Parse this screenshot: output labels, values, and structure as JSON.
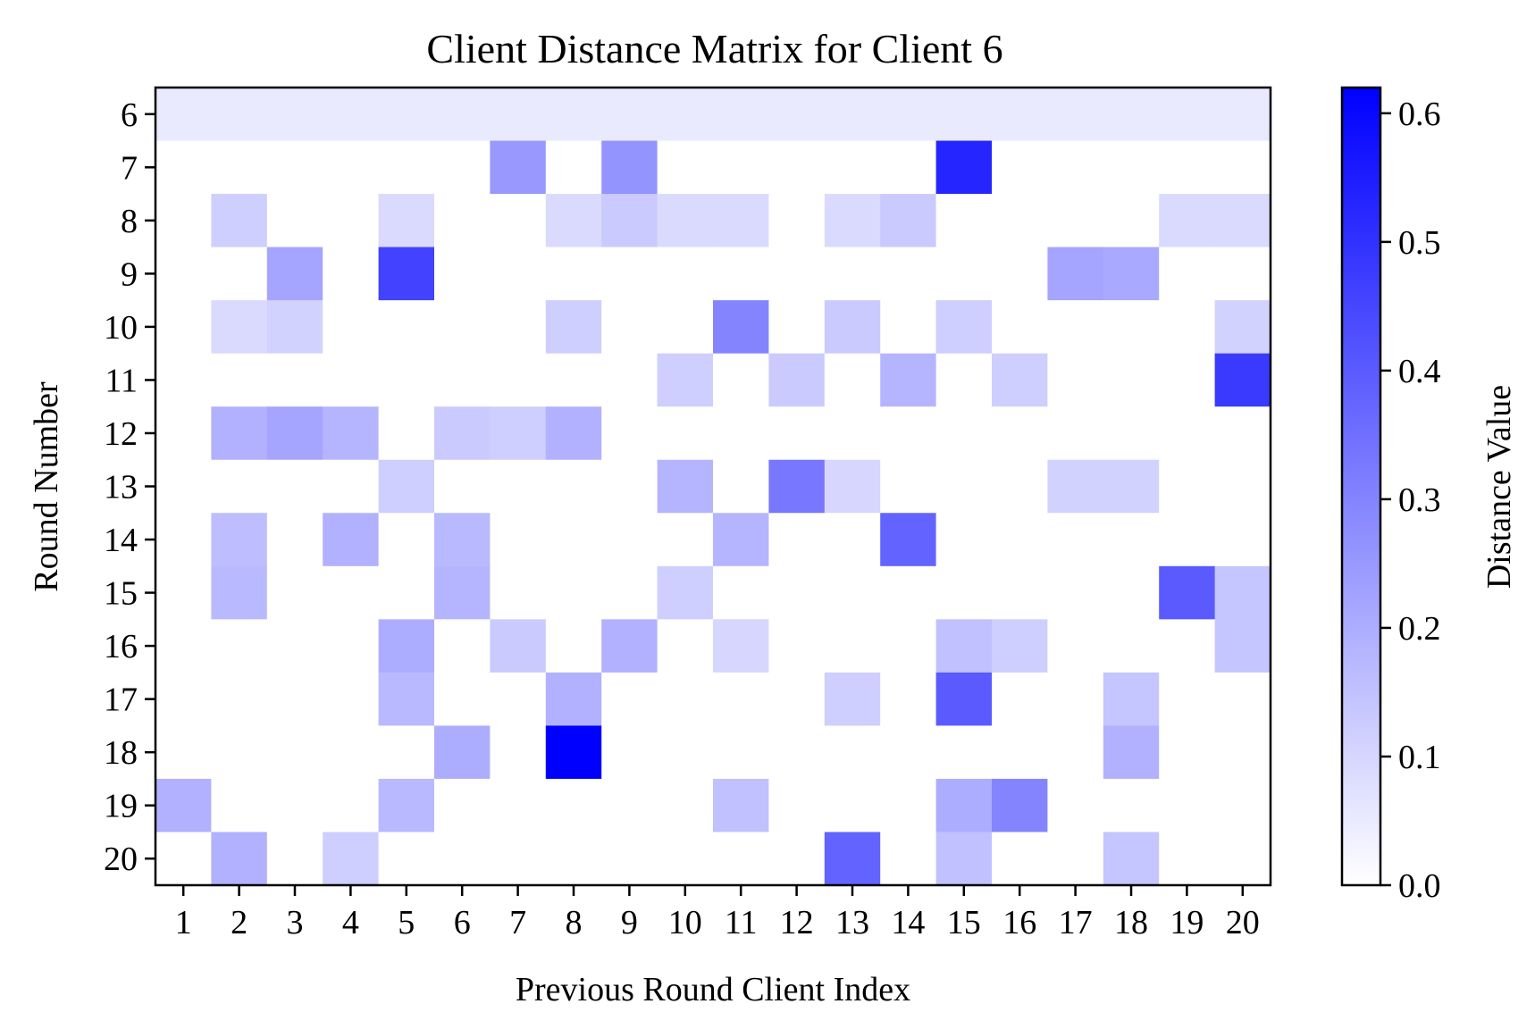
{
  "chart_data": {
    "type": "heatmap",
    "title": "Client Distance Matrix for Client 6",
    "xlabel": "Previous Round Client Index",
    "ylabel": "Round Number",
    "x_categories": [
      "1",
      "2",
      "3",
      "4",
      "5",
      "6",
      "7",
      "8",
      "9",
      "10",
      "11",
      "12",
      "13",
      "14",
      "15",
      "16",
      "17",
      "18",
      "19",
      "20"
    ],
    "y_categories": [
      "6",
      "7",
      "8",
      "9",
      "10",
      "11",
      "12",
      "13",
      "14",
      "15",
      "16",
      "17",
      "18",
      "19",
      "20"
    ],
    "values": [
      [
        0.05,
        0.05,
        0.05,
        0.05,
        0.05,
        0.05,
        0.05,
        0.05,
        0.05,
        0.05,
        0.05,
        0.05,
        0.05,
        0.05,
        0.05,
        0.05,
        0.05,
        0.05,
        0.05,
        0.05
      ],
      [
        0,
        0,
        0,
        0,
        0,
        0,
        0.25,
        0,
        0.26,
        0,
        0,
        0,
        0,
        0,
        0.53,
        0,
        0,
        0,
        0,
        0
      ],
      [
        0,
        0.12,
        0,
        0,
        0.09,
        0,
        0,
        0.09,
        0.13,
        0.09,
        0.09,
        0,
        0.09,
        0.13,
        0,
        0,
        0,
        0,
        0.09,
        0.09
      ],
      [
        0,
        0,
        0.22,
        0,
        0.46,
        0,
        0,
        0,
        0,
        0,
        0,
        0,
        0,
        0,
        0,
        0,
        0.22,
        0.21,
        0,
        0
      ],
      [
        0,
        0.09,
        0.11,
        0,
        0,
        0,
        0,
        0.12,
        0,
        0,
        0.3,
        0,
        0.13,
        0,
        0.12,
        0,
        0,
        0,
        0,
        0.11
      ],
      [
        0,
        0,
        0,
        0,
        0,
        0,
        0,
        0,
        0,
        0.12,
        0,
        0.13,
        0,
        0.18,
        0,
        0.12,
        0,
        0,
        0,
        0.48
      ],
      [
        0,
        0.19,
        0.22,
        0.18,
        0,
        0.13,
        0.12,
        0.19,
        0,
        0,
        0,
        0,
        0,
        0,
        0,
        0,
        0,
        0,
        0,
        0
      ],
      [
        0,
        0,
        0,
        0,
        0.12,
        0,
        0,
        0,
        0,
        0.18,
        0,
        0.33,
        0.1,
        0,
        0,
        0,
        0.11,
        0.11,
        0,
        0
      ],
      [
        0,
        0.16,
        0,
        0.19,
        0,
        0.17,
        0,
        0,
        0,
        0,
        0.18,
        0,
        0,
        0.38,
        0,
        0,
        0,
        0,
        0,
        0
      ],
      [
        0,
        0.17,
        0,
        0,
        0,
        0.18,
        0,
        0,
        0,
        0.12,
        0,
        0,
        0,
        0,
        0,
        0,
        0,
        0,
        0.4,
        0.14
      ],
      [
        0,
        0,
        0,
        0,
        0.2,
        0,
        0.13,
        0,
        0.19,
        0,
        0.1,
        0,
        0,
        0,
        0.15,
        0.12,
        0,
        0,
        0,
        0.14
      ],
      [
        0,
        0,
        0,
        0,
        0.17,
        0,
        0,
        0.19,
        0,
        0,
        0,
        0,
        0.12,
        0,
        0.4,
        0,
        0,
        0.14,
        0,
        0
      ],
      [
        0,
        0,
        0,
        0,
        0,
        0.2,
        0,
        0.62,
        0,
        0,
        0,
        0,
        0,
        0,
        0,
        0,
        0,
        0.19,
        0,
        0
      ],
      [
        0.19,
        0,
        0,
        0,
        0.17,
        0,
        0,
        0,
        0,
        0,
        0.15,
        0,
        0,
        0,
        0.2,
        0.3,
        0,
        0,
        0,
        0
      ],
      [
        0,
        0.19,
        0,
        0.12,
        0,
        0,
        0,
        0,
        0,
        0,
        0,
        0,
        0.38,
        0,
        0.15,
        0,
        0,
        0.14,
        0,
        0
      ]
    ],
    "colorbar": {
      "label": "Distance Value",
      "min": 0.0,
      "max": 0.62,
      "ticks": [
        "0.0",
        "0.1",
        "0.2",
        "0.3",
        "0.4",
        "0.5",
        "0.6"
      ],
      "tick_values": [
        0,
        0.1,
        0.2,
        0.3,
        0.4,
        0.5,
        0.6
      ],
      "color_low": "#ffffff",
      "color_high": "#0000ff"
    },
    "grid": false,
    "legend": "none"
  }
}
